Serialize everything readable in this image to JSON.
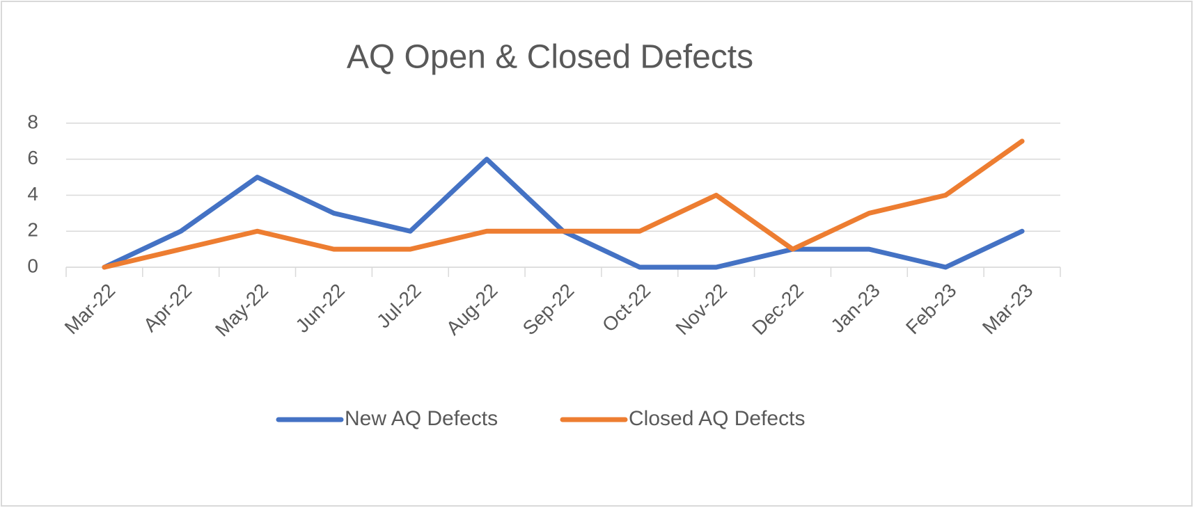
{
  "chart_data": {
    "type": "line",
    "title": "AQ Open & Closed Defects",
    "categories": [
      "Mar-22",
      "Apr-22",
      "May-22",
      "Jun-22",
      "Jul-22",
      "Aug-22",
      "Sep-22",
      "Oct-22",
      "Nov-22",
      "Dec-22",
      "Jan-23",
      "Feb-23",
      "Mar-23"
    ],
    "series": [
      {
        "name": "New AQ Defects",
        "color": "#4472c4",
        "values": [
          0,
          2,
          5,
          3,
          2,
          6,
          2,
          0,
          0,
          1,
          1,
          0,
          2
        ]
      },
      {
        "name": "Closed AQ Defects",
        "color": "#ed7d31",
        "values": [
          0,
          1,
          2,
          1,
          1,
          2,
          2,
          2,
          4,
          1,
          3,
          4,
          7
        ]
      }
    ],
    "ylim": [
      0,
      8
    ],
    "yticks": [
      0,
      2,
      4,
      6,
      8
    ],
    "grid": true,
    "legend": "bottom"
  }
}
